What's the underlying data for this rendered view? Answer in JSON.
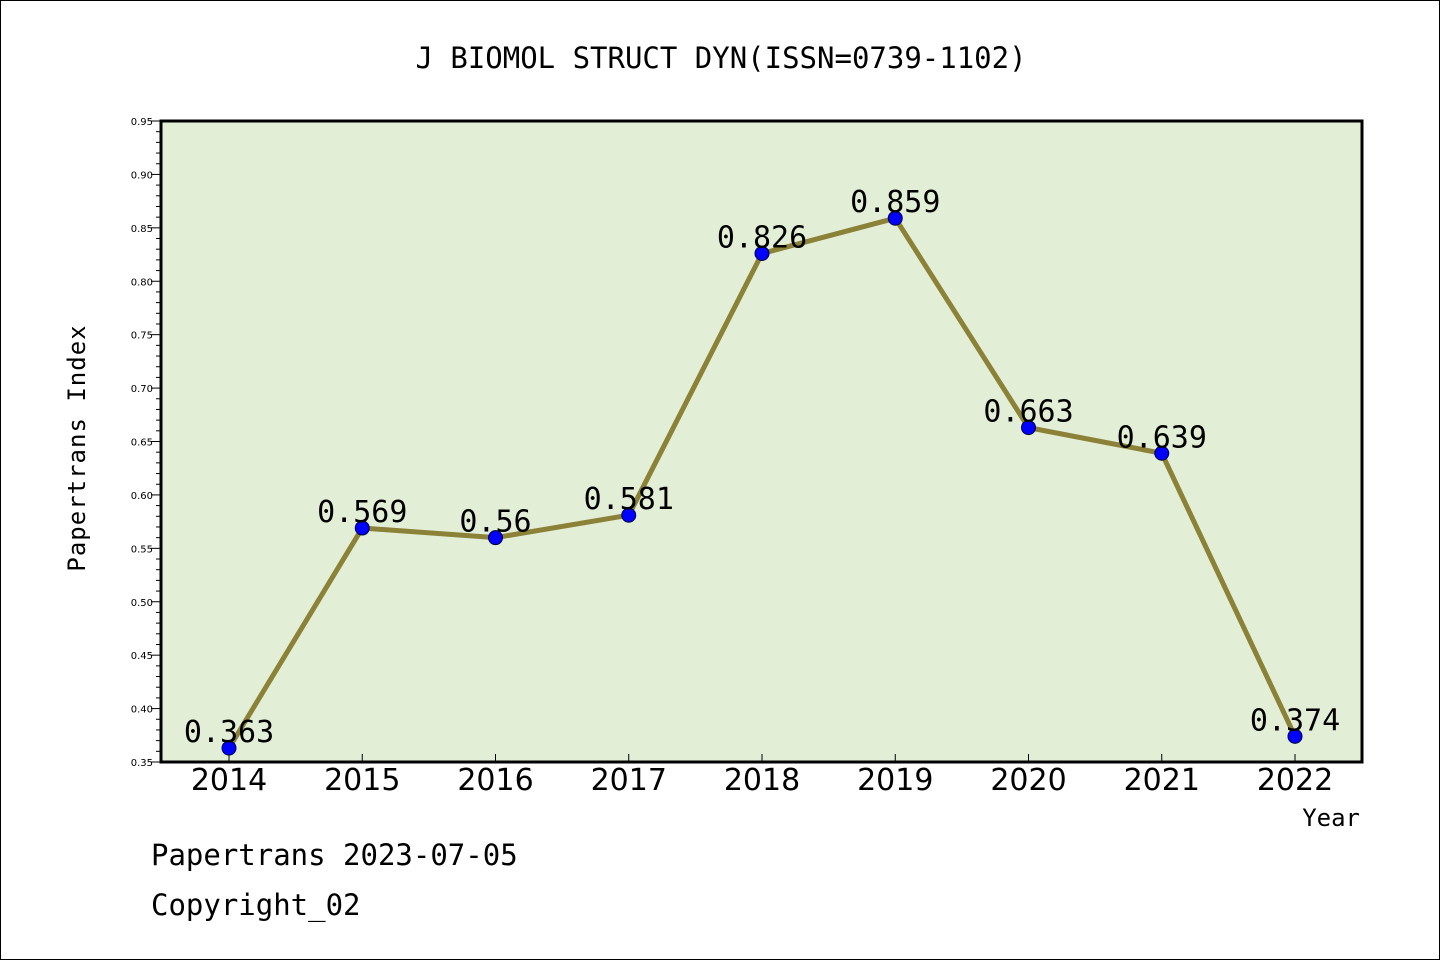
{
  "chart_data": {
    "type": "line",
    "title": "J BIOMOL STRUCT DYN(ISSN=0739-1102)",
    "xlabel": "Year",
    "ylabel": "Papertrans Index",
    "categories": [
      "2014",
      "2015",
      "2016",
      "2017",
      "2018",
      "2019",
      "2020",
      "2021",
      "2022"
    ],
    "values": [
      0.363,
      0.569,
      0.56,
      0.581,
      0.826,
      0.859,
      0.663,
      0.639,
      0.374
    ],
    "data_labels": [
      "0.363",
      "0.569",
      "0.56",
      "0.581",
      "0.826",
      "0.859",
      "0.663",
      "0.639",
      "0.374"
    ],
    "ylim": [
      0.35,
      0.95
    ],
    "yticks": [
      "0.35",
      "0.40",
      "0.45",
      "0.50",
      "0.55",
      "0.60",
      "0.65",
      "0.70",
      "0.75",
      "0.80",
      "0.85",
      "0.90",
      "0.95"
    ],
    "grid": false,
    "colors": {
      "plot_background": "#e2efd6",
      "line": "#8b8137",
      "marker": "#0000ff"
    }
  },
  "footer": {
    "line1": "Papertrans 2023-07-05",
    "line2": "Copyright_02"
  }
}
